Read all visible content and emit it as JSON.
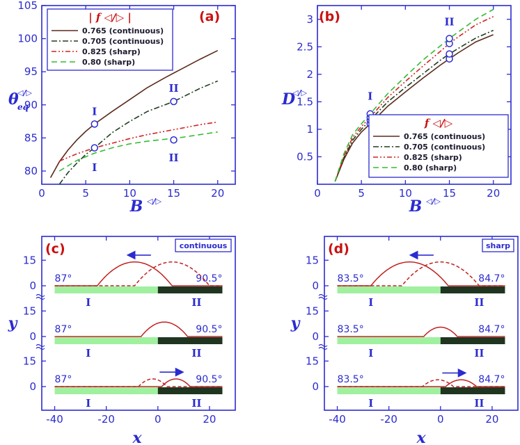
{
  "colors": {
    "axis": "#2b2bd0",
    "label_red": "#cc1010",
    "series": [
      "#5a2a1a",
      "#1f3d1f",
      "#d42020",
      "#33bb33"
    ],
    "drop": "#c02020",
    "hydrophilic": "#a0f0a0",
    "hydrophobic": "#1f3520",
    "marker": "#2b2bd0"
  },
  "chart_data": [
    {
      "id": "a",
      "type": "line",
      "panel_label": "(a)",
      "xlabel": "B",
      "xlabel_sup": "◁/▷",
      "ylabel": "θ",
      "ylabel_sub": "eq",
      "ylabel_sup": "◁/▷",
      "xlim": [
        0,
        22
      ],
      "ylim": [
        78,
        105
      ],
      "xticks": [
        0,
        5,
        10,
        15,
        20
      ],
      "yticks": [
        80,
        85,
        90,
        95,
        100,
        105
      ],
      "legend_title": "| f ◁/▷ |",
      "legend_position": "top-left",
      "series": [
        {
          "name": "0.765 (continuous)",
          "dash": "",
          "x": [
            1,
            2,
            3,
            4,
            5,
            6,
            8,
            10,
            12,
            14,
            16,
            18,
            20
          ],
          "y": [
            79.0,
            81.4,
            83.2,
            84.7,
            86.0,
            87.1,
            89.0,
            90.8,
            92.6,
            94.1,
            95.5,
            96.9,
            98.2
          ]
        },
        {
          "name": "0.705  (continuous)",
          "dash": "8 3 2 3",
          "x": [
            2,
            3,
            4,
            5,
            6,
            8,
            10,
            12,
            15,
            18,
            20
          ],
          "y": [
            78.0,
            79.8,
            81.2,
            82.5,
            83.5,
            85.8,
            87.5,
            89.0,
            90.5,
            92.5,
            93.6
          ]
        },
        {
          "name": "0.825 (sharp)",
          "dash": "7 3 2 3 2 3",
          "x": [
            2,
            4,
            6,
            8,
            10,
            12,
            14,
            16,
            18,
            20
          ],
          "y": [
            81.5,
            82.6,
            83.5,
            84.2,
            84.9,
            85.5,
            86.0,
            86.5,
            87.0,
            87.4
          ]
        },
        {
          "name": "0.80  (sharp)",
          "dash": "8 5",
          "x": [
            2,
            4,
            6,
            8,
            10,
            12,
            14,
            16,
            18,
            20
          ],
          "y": [
            80.0,
            81.6,
            82.7,
            83.5,
            84.1,
            84.5,
            84.8,
            85.1,
            85.5,
            85.9
          ]
        }
      ],
      "markers": [
        {
          "x": 6,
          "y": 87.1,
          "label": "I",
          "lx": 6,
          "ly": 89.0
        },
        {
          "x": 6,
          "y": 83.5,
          "label": "I",
          "lx": 6,
          "ly": 80.5
        },
        {
          "x": 15,
          "y": 90.5,
          "label": "II",
          "lx": 15,
          "ly": 92.5
        },
        {
          "x": 15,
          "y": 84.7,
          "label": "II",
          "lx": 15,
          "ly": 82.0
        }
      ]
    },
    {
      "id": "b",
      "type": "line",
      "panel_label": "(b)",
      "xlabel": "B",
      "xlabel_sup": "◁/▷",
      "ylabel": "D",
      "ylabel_sup": "◁/▷",
      "xlim": [
        0,
        22
      ],
      "ylim": [
        0,
        3.25
      ],
      "xticks": [
        0,
        5,
        10,
        15,
        20
      ],
      "yticks": [
        0.5,
        1,
        1.5,
        2,
        2.5,
        3
      ],
      "legend_title": "f ◁/▷",
      "legend_position": "bottom-right",
      "series": [
        {
          "name": "0.765 (continuous)",
          "dash": "",
          "x": [
            2,
            3,
            4,
            5,
            6,
            8,
            10,
            12,
            14,
            15,
            16,
            18,
            20
          ],
          "y": [
            0.05,
            0.45,
            0.75,
            0.95,
            1.1,
            1.42,
            1.68,
            1.93,
            2.17,
            2.28,
            2.39,
            2.59,
            2.72
          ]
        },
        {
          "name": "0.705 (continuous)",
          "dash": "8 3 2 3",
          "x": [
            2,
            3,
            4,
            5,
            6,
            8,
            10,
            12,
            14,
            15,
            16,
            18,
            20
          ],
          "y": [
            0.05,
            0.48,
            0.8,
            1.0,
            1.17,
            1.5,
            1.76,
            2.01,
            2.26,
            2.37,
            2.47,
            2.66,
            2.8
          ]
        },
        {
          "name": "0.825 (sharp)",
          "dash": "7 3 2 3 2 3",
          "x": [
            2,
            3,
            4,
            5,
            6,
            8,
            10,
            12,
            14,
            15,
            16,
            18,
            20
          ],
          "y": [
            0.05,
            0.5,
            0.85,
            1.05,
            1.22,
            1.58,
            1.87,
            2.15,
            2.42,
            2.56,
            2.68,
            2.9,
            3.05
          ]
        },
        {
          "name": "0.80  (sharp)",
          "dash": "8 5",
          "x": [
            2,
            3,
            4,
            5,
            6,
            8,
            10,
            12,
            14,
            15,
            16,
            18,
            20
          ],
          "y": [
            0.05,
            0.55,
            0.9,
            1.1,
            1.28,
            1.65,
            1.96,
            2.26,
            2.52,
            2.65,
            2.77,
            3.0,
            3.18
          ]
        }
      ],
      "markers": [
        {
          "x": 6,
          "y": 1.1
        },
        {
          "x": 6,
          "y": 1.17
        },
        {
          "x": 6,
          "y": 1.22
        },
        {
          "x": 6,
          "y": 1.28
        },
        {
          "x": 15,
          "y": 2.28
        },
        {
          "x": 15,
          "y": 2.37
        },
        {
          "x": 15,
          "y": 2.56
        },
        {
          "x": 15,
          "y": 2.65
        }
      ],
      "group_labels": [
        {
          "label": "I",
          "x": 6,
          "y": 1.6
        },
        {
          "label": "II",
          "x": 15,
          "y": 2.95
        }
      ]
    },
    {
      "id": "c",
      "type": "line",
      "panel_label": "(c)",
      "box_label": "continuous",
      "xlabel": "x",
      "ylabel": "y",
      "xlim": [
        -45,
        30
      ],
      "xticks": [
        -40,
        -20,
        0,
        20
      ],
      "subplots": [
        {
          "height": 14,
          "arrow": "left",
          "left_angle": "87°",
          "right_angle": "90.5°",
          "solid": {
            "center": -9,
            "half": 14.5
          },
          "dashed": {
            "center": 5.5,
            "half": 14.5
          }
        },
        {
          "height": 8.5,
          "left_angle": "87°",
          "right_angle": "90.5°",
          "solid": {
            "center": 2.5,
            "half": 9
          }
        },
        {
          "height": 4.5,
          "arrow": "right",
          "left_angle": "87°",
          "right_angle": "90.5°",
          "solid": {
            "center": 7,
            "half": 5.5
          },
          "dashed": {
            "center": -2,
            "half": 5.5
          }
        }
      ]
    },
    {
      "id": "d",
      "type": "line",
      "panel_label": "(d)",
      "box_label": "sharp",
      "xlabel": "x",
      "ylabel": "y",
      "xlim": [
        -45,
        30
      ],
      "xticks": [
        -40,
        -20,
        0,
        20
      ],
      "subplots": [
        {
          "height": 14,
          "arrow": "left",
          "left_angle": "83.5°",
          "right_angle": "84.7°",
          "solid": {
            "center": -12,
            "half": 15
          },
          "dashed": {
            "center": 0,
            "half": 15
          }
        },
        {
          "height": 5.5,
          "left_angle": "83.5°",
          "right_angle": "84.7°",
          "solid": {
            "center": 0,
            "half": 6.5
          }
        },
        {
          "height": 4,
          "arrow": "right",
          "left_angle": "83.5°",
          "right_angle": "84.7°",
          "solid": {
            "center": 8,
            "half": 6
          },
          "dashed": {
            "center": -1,
            "half": 6
          }
        }
      ]
    }
  ],
  "yticks_profile": [
    "0",
    "15"
  ],
  "roman_left": "I",
  "roman_right": "II"
}
